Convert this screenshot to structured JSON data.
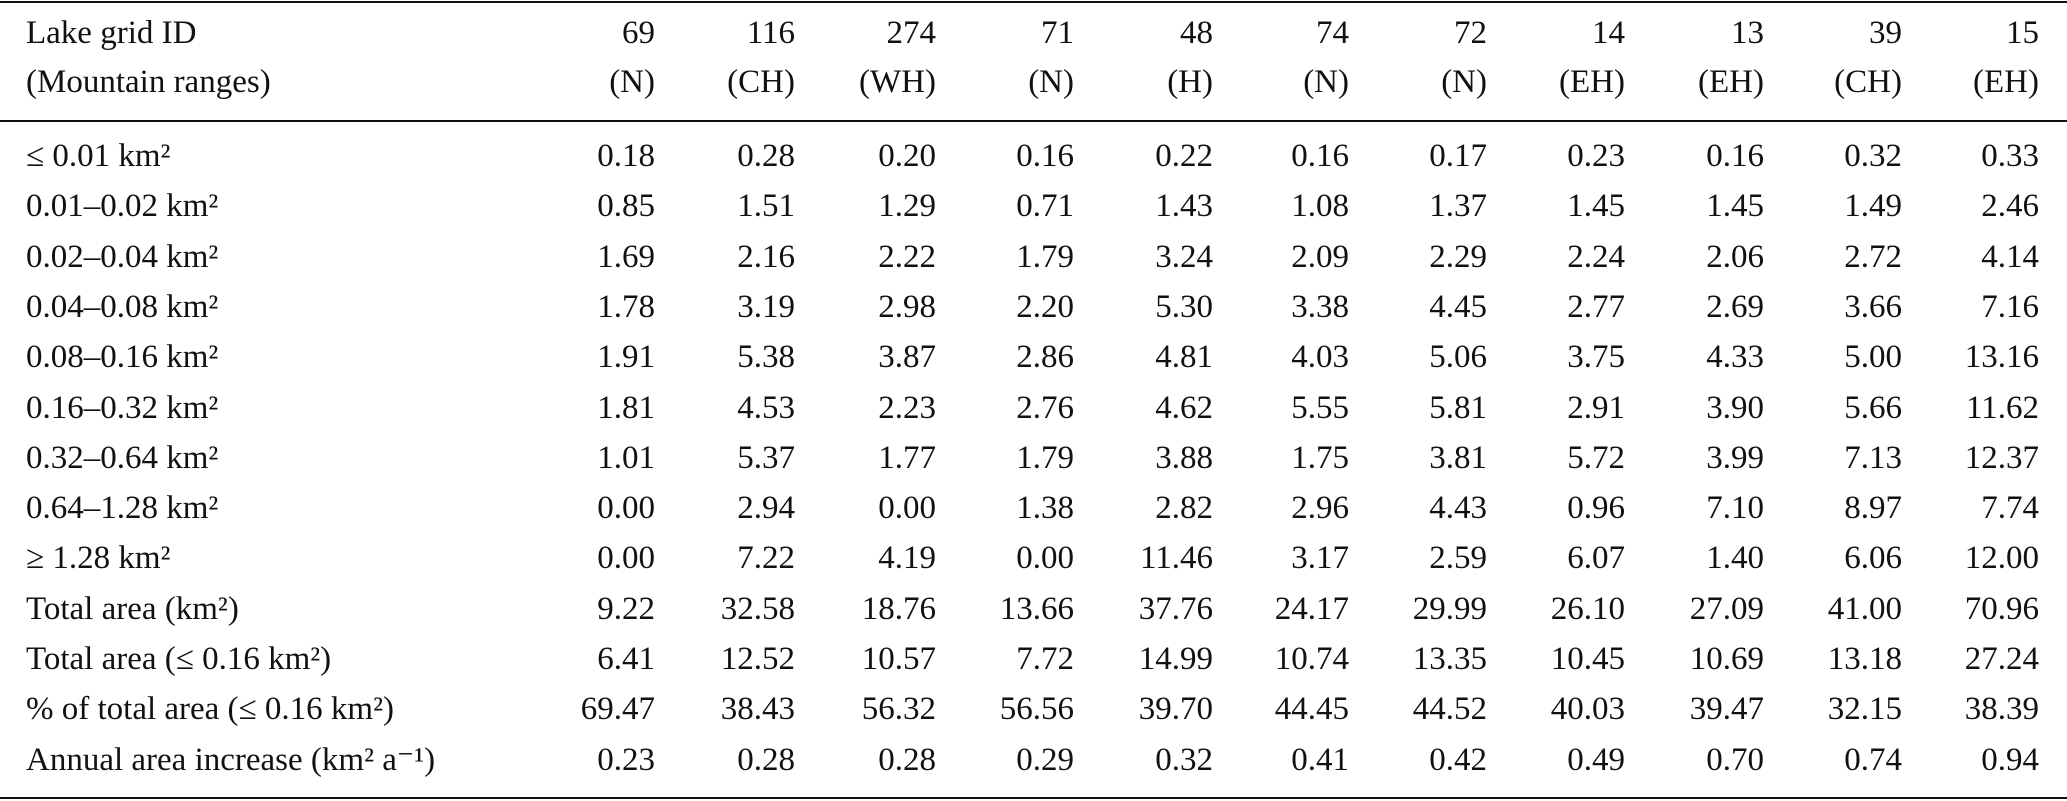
{
  "table": {
    "header": [
      "Lake grid ID",
      "(Mountain ranges)"
    ],
    "columns": [
      {
        "id": "69",
        "range": "(N)"
      },
      {
        "id": "116",
        "range": "(CH)"
      },
      {
        "id": "274",
        "range": "(WH)"
      },
      {
        "id": "71",
        "range": "(N)"
      },
      {
        "id": "48",
        "range": "(H)"
      },
      {
        "id": "74",
        "range": "(N)"
      },
      {
        "id": "72",
        "range": "(N)"
      },
      {
        "id": "14",
        "range": "(EH)"
      },
      {
        "id": "13",
        "range": "(EH)"
      },
      {
        "id": "39",
        "range": "(CH)"
      },
      {
        "id": "15",
        "range": "(EH)"
      }
    ],
    "rows": [
      {
        "label": "≤ 0.01 km²",
        "values": [
          "0.18",
          "0.28",
          "0.20",
          "0.16",
          "0.22",
          "0.16",
          "0.17",
          "0.23",
          "0.16",
          "0.32",
          "0.33"
        ]
      },
      {
        "label": "0.01–0.02 km²",
        "values": [
          "0.85",
          "1.51",
          "1.29",
          "0.71",
          "1.43",
          "1.08",
          "1.37",
          "1.45",
          "1.45",
          "1.49",
          "2.46"
        ]
      },
      {
        "label": "0.02–0.04 km²",
        "values": [
          "1.69",
          "2.16",
          "2.22",
          "1.79",
          "3.24",
          "2.09",
          "2.29",
          "2.24",
          "2.06",
          "2.72",
          "4.14"
        ]
      },
      {
        "label": "0.04–0.08 km²",
        "values": [
          "1.78",
          "3.19",
          "2.98",
          "2.20",
          "5.30",
          "3.38",
          "4.45",
          "2.77",
          "2.69",
          "3.66",
          "7.16"
        ]
      },
      {
        "label": "0.08–0.16 km²",
        "values": [
          "1.91",
          "5.38",
          "3.87",
          "2.86",
          "4.81",
          "4.03",
          "5.06",
          "3.75",
          "4.33",
          "5.00",
          "13.16"
        ]
      },
      {
        "label": "0.16–0.32 km²",
        "values": [
          "1.81",
          "4.53",
          "2.23",
          "2.76",
          "4.62",
          "5.55",
          "5.81",
          "2.91",
          "3.90",
          "5.66",
          "11.62"
        ]
      },
      {
        "label": "0.32–0.64 km²",
        "values": [
          "1.01",
          "5.37",
          "1.77",
          "1.79",
          "3.88",
          "1.75",
          "3.81",
          "5.72",
          "3.99",
          "7.13",
          "12.37"
        ]
      },
      {
        "label": "0.64–1.28 km²",
        "values": [
          "0.00",
          "2.94",
          "0.00",
          "1.38",
          "2.82",
          "2.96",
          "4.43",
          "0.96",
          "7.10",
          "8.97",
          "7.74"
        ]
      },
      {
        "label": "≥ 1.28 km²",
        "values": [
          "0.00",
          "7.22",
          "4.19",
          "0.00",
          "11.46",
          "3.17",
          "2.59",
          "6.07",
          "1.40",
          "6.06",
          "12.00"
        ]
      },
      {
        "label": "Total area (km²)",
        "values": [
          "9.22",
          "32.58",
          "18.76",
          "13.66",
          "37.76",
          "24.17",
          "29.99",
          "26.10",
          "27.09",
          "41.00",
          "70.96"
        ]
      },
      {
        "label": "Total area (≤ 0.16 km²)",
        "values": [
          "6.41",
          "12.52",
          "10.57",
          "7.72",
          "14.99",
          "10.74",
          "13.35",
          "10.45",
          "10.69",
          "13.18",
          "27.24"
        ]
      },
      {
        "label": "% of total area (≤ 0.16 km²)",
        "values": [
          "69.47",
          "38.43",
          "56.32",
          "56.56",
          "39.70",
          "44.45",
          "44.52",
          "40.03",
          "39.47",
          "32.15",
          "38.39"
        ]
      },
      {
        "label": "Annual area increase (km² a⁻¹)",
        "values": [
          "0.23",
          "0.28",
          "0.28",
          "0.29",
          "0.32",
          "0.41",
          "0.42",
          "0.49",
          "0.70",
          "0.74",
          "0.94"
        ]
      }
    ]
  }
}
